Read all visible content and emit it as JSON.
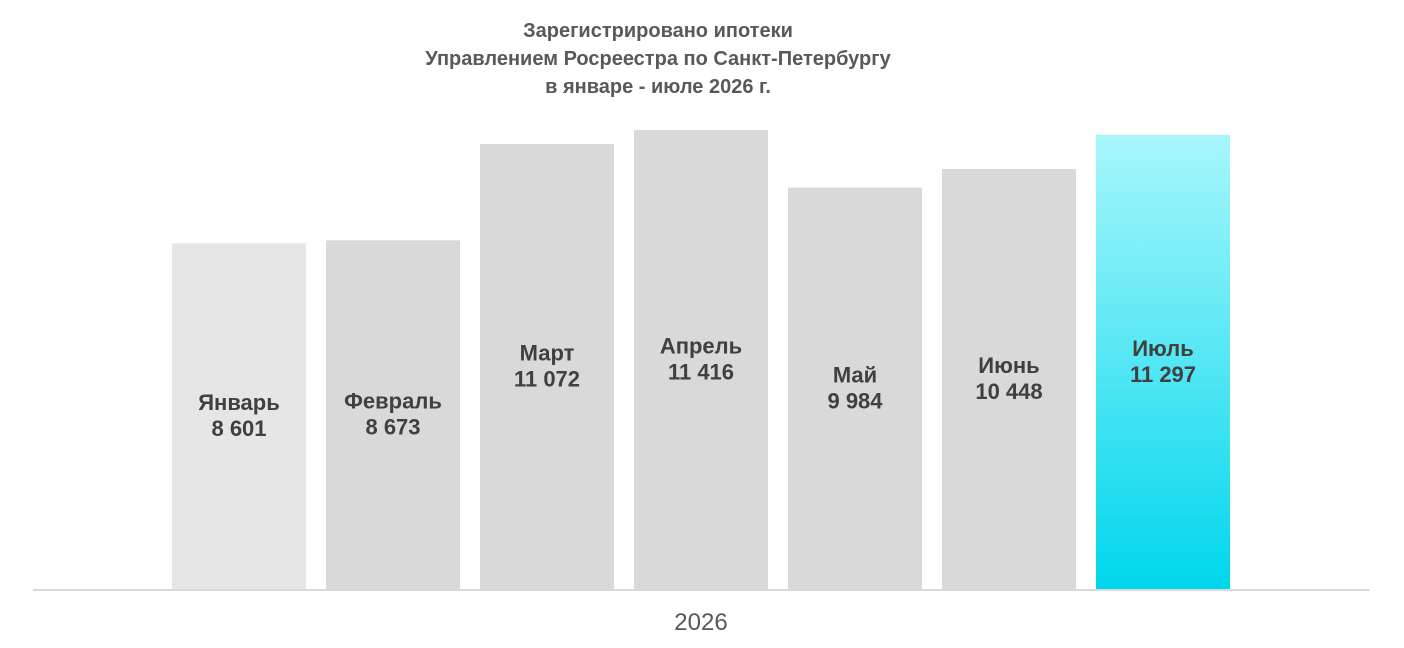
{
  "chart_data": {
    "type": "bar",
    "title_lines": [
      "Зарегистрировано ипотеки",
      "Управлением Росреестра по Санкт-Петербургу",
      "в январе - июле 2026 г."
    ],
    "categories": [
      "Январь",
      "Февраль",
      "Март",
      "Апрель",
      "Май",
      "Июнь",
      "Июль"
    ],
    "values": [
      8601,
      8673,
      11072,
      11416,
      9984,
      10448,
      11297
    ],
    "value_labels": [
      "8 601",
      "8 673",
      "11 072",
      "11 416",
      "9 984",
      "10 448",
      "11 297"
    ],
    "xlabel": "2026",
    "ylabel": "",
    "grid": false,
    "legend": "none",
    "colors": {
      "first_bar": "#e6e6e6",
      "default_bar": "#d9d9d9",
      "highlight_top": "#a8f7fc",
      "highlight_bottom": "#00d6ec",
      "axis_line": "#d9d9d9",
      "title_text": "#595959",
      "label_text": "#404040"
    },
    "highlight_index": 6
  }
}
